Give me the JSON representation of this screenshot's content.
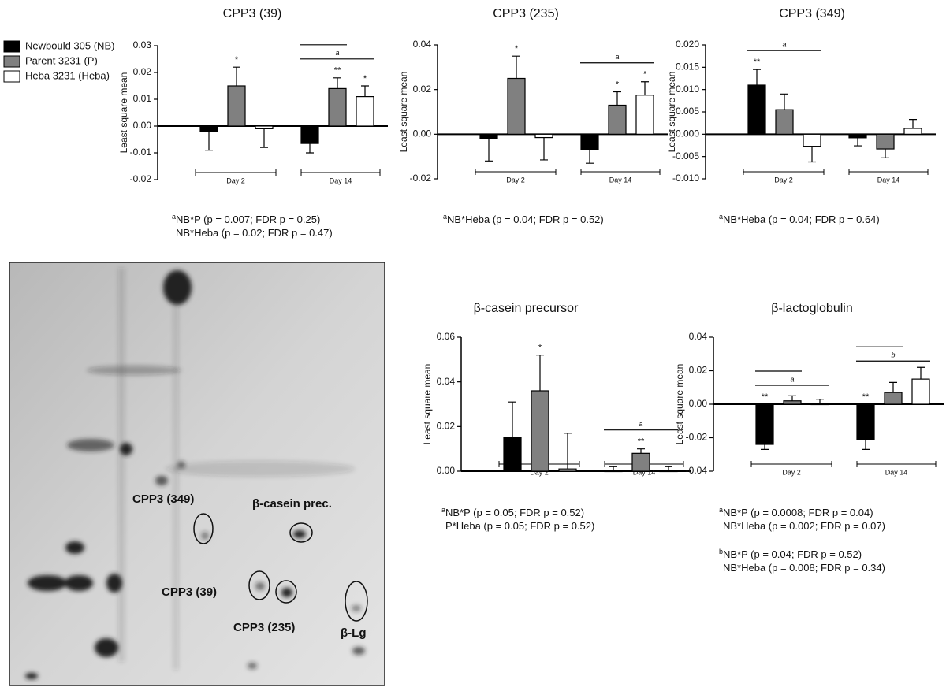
{
  "chart_data": [
    {
      "type": "bar",
      "title": "CPP3 (39)",
      "ylabel": "Least square mean",
      "categories": [
        "Day 2",
        "Day 14"
      ],
      "series": [
        {
          "name": "Newbould 305 (NB)",
          "color": "#000000",
          "values": [
            -0.002,
            -0.0065
          ],
          "errors": [
            0.007,
            0.0035
          ],
          "stars": [
            null,
            null
          ]
        },
        {
          "name": "Parent 3231 (P)",
          "color": "#808080",
          "values": [
            0.015,
            0.014
          ],
          "errors": [
            0.007,
            0.004
          ],
          "stars": [
            "*",
            "**"
          ]
        },
        {
          "name": "Heba 3231 (Heba)",
          "color": "#ffffff",
          "values": [
            -0.001,
            0.011
          ],
          "errors": [
            0.007,
            0.004
          ],
          "stars": [
            null,
            "*"
          ]
        }
      ],
      "ylim": [
        -0.02,
        0.03
      ],
      "yticks": [
        -0.02,
        -0.01,
        {
          "value": 0,
          "label": "0.00"
        },
        0.01,
        0.02,
        0.03
      ],
      "annotations": [
        {
          "text": "a",
          "group": 1,
          "spans": [
            [
              0,
              1
            ],
            [
              0,
              2
            ]
          ]
        }
      ],
      "notes": [
        {
          "sup": "a",
          "text": "NB*P (p = 0.007; FDR p = 0.25)"
        },
        {
          "text": "NB*Heba (p = 0.02; FDR p = 0.47)"
        }
      ]
    },
    {
      "type": "bar",
      "title": "CPP3 (235)",
      "ylabel": "Least square mean",
      "categories": [
        "Day 2",
        "Day 14"
      ],
      "series": [
        {
          "color": "#000000",
          "values": [
            -0.002,
            -0.007
          ],
          "errors": [
            0.01,
            0.006
          ],
          "stars": [
            null,
            null
          ]
        },
        {
          "color": "#808080",
          "values": [
            0.025,
            0.013
          ],
          "errors": [
            0.01,
            0.006
          ],
          "stars": [
            "*",
            "*"
          ]
        },
        {
          "color": "#ffffff",
          "values": [
            -0.0015,
            0.0175
          ],
          "errors": [
            0.01,
            0.006
          ],
          "stars": [
            null,
            "*"
          ]
        }
      ],
      "ylim": [
        -0.02,
        0.04
      ],
      "yticks": [
        -0.02,
        {
          "value": 0,
          "label": "0.00"
        },
        0.02,
        0.04
      ],
      "annotations": [
        {
          "text": "a",
          "group": 1,
          "spans": [
            [
              0,
              2
            ]
          ]
        }
      ],
      "notes": [
        {
          "sup": "a",
          "text": "NB*Heba (p = 0.04; FDR p = 0.52)"
        }
      ]
    },
    {
      "type": "bar",
      "title": "CPP3 (349)",
      "ylabel": "Least square mean",
      "categories": [
        "Day 2",
        "Day 14"
      ],
      "series": [
        {
          "color": "#000000",
          "values": [
            0.011,
            -0.0008
          ],
          "errors": [
            0.0035,
            0.0018
          ],
          "stars": [
            "**",
            null
          ]
        },
        {
          "color": "#808080",
          "values": [
            0.0055,
            -0.0033
          ],
          "errors": [
            0.0035,
            0.002
          ],
          "stars": [
            null,
            null
          ]
        },
        {
          "color": "#ffffff",
          "values": [
            -0.0027,
            0.0013
          ],
          "errors": [
            0.0035,
            0.002
          ],
          "stars": [
            null,
            null
          ]
        }
      ],
      "ylim": [
        -0.01,
        0.02
      ],
      "yticks": [
        {
          "value": -0.01,
          "label": "-0.010"
        },
        -0.005,
        {
          "value": 0,
          "label": "0.000"
        },
        0.005,
        {
          "value": 0.01,
          "label": "0.010"
        },
        0.015,
        {
          "value": 0.02,
          "label": "0.020"
        }
      ],
      "annotations": [
        {
          "text": "a",
          "group": 0,
          "spans": [
            [
              0,
              2
            ]
          ]
        }
      ],
      "notes": [
        {
          "sup": "a",
          "text": "NB*Heba (p = 0.04; FDR p = 0.64)"
        }
      ]
    },
    {
      "type": "bar",
      "title": "β-casein precursor",
      "ylabel": "Least square mean",
      "categories": [
        "Day 2",
        "Day 14"
      ],
      "series": [
        {
          "color": "#000000",
          "values": [
            0.015,
            0
          ],
          "errors": [
            0.016,
            0.002
          ],
          "stars": [
            null,
            null
          ]
        },
        {
          "color": "#808080",
          "values": [
            0.036,
            0.008
          ],
          "errors": [
            0.016,
            0.002
          ],
          "stars": [
            "*",
            "**"
          ]
        },
        {
          "color": "#ffffff",
          "values": [
            0.001,
            0
          ],
          "errors": [
            0.016,
            0.002
          ],
          "stars": [
            null,
            null
          ]
        }
      ],
      "ylim": [
        0,
        0.06
      ],
      "yticks": [
        {
          "value": 0,
          "label": "0.00"
        },
        0.02,
        0.04,
        0.06
      ],
      "annotations": [
        {
          "text": "a",
          "group": 1,
          "spans": [
            [
              0,
              2
            ]
          ]
        }
      ],
      "notes": [
        {
          "sup": "a",
          "text": "NB*P (p = 0.05; FDR p = 0.52)"
        },
        {
          "text": "P*Heba (p = 0.05; FDR p = 0.52)"
        }
      ]
    },
    {
      "type": "bar",
      "title": "β-lactoglobulin",
      "ylabel": "Least square mean",
      "categories": [
        "Day 2",
        "Day 14"
      ],
      "series": [
        {
          "color": "#000000",
          "values": [
            -0.024,
            -0.021
          ],
          "errors": [
            0.003,
            0.006
          ],
          "stars": [
            "**",
            "**"
          ]
        },
        {
          "color": "#808080",
          "values": [
            0.002,
            0.007
          ],
          "errors": [
            0.003,
            0.006
          ],
          "stars": [
            null,
            null
          ]
        },
        {
          "color": "#ffffff",
          "values": [
            0,
            0.015
          ],
          "errors": [
            0.003,
            0.007
          ],
          "stars": [
            null,
            null
          ]
        }
      ],
      "ylim": [
        -0.04,
        0.04
      ],
      "yticks": [
        -0.04,
        -0.02,
        {
          "value": 0,
          "label": "0.00"
        },
        0.02,
        0.04
      ],
      "annotations": [
        {
          "text": "a",
          "group": 0,
          "spans": [
            [
              0,
              1
            ],
            [
              0,
              2
            ]
          ]
        },
        {
          "text": "b",
          "group": 1,
          "spans": [
            [
              0,
              1
            ],
            [
              0,
              2
            ]
          ]
        }
      ],
      "notes": [
        {
          "sup": "a",
          "text": "NB*P (p = 0.0008; FDR p = 0.04)"
        },
        {
          "text": "NB*Heba (p = 0.002; FDR p = 0.07)"
        },
        {
          "sup": "b",
          "text": "NB*P (p = 0.04; FDR p = 0.52)"
        },
        {
          "text": "NB*Heba (p = 0.008; FDR p = 0.34)"
        }
      ]
    }
  ],
  "gel": {
    "labels": [
      "CPP3 (349)",
      "β-casein prec.",
      "CPP3 (39)",
      "CPP3 (235)",
      "β-Lg"
    ]
  }
}
